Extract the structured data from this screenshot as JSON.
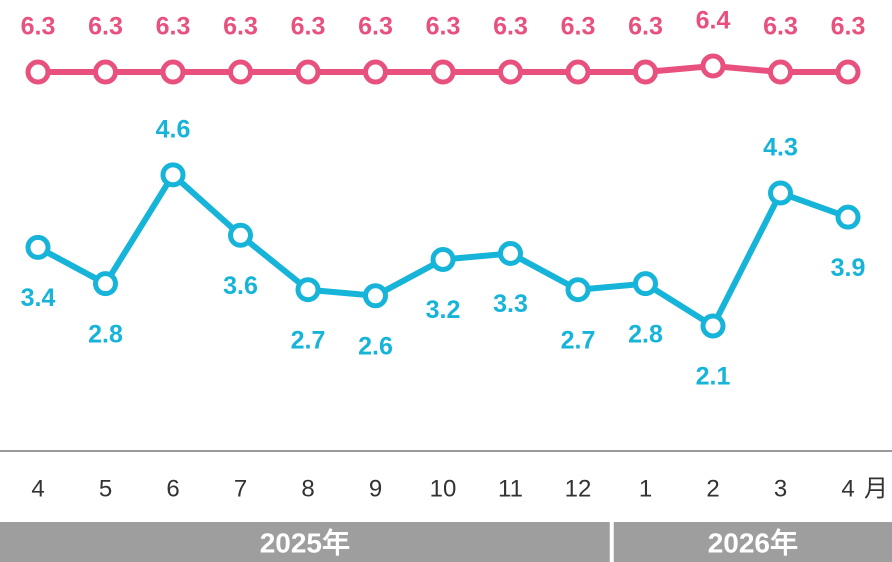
{
  "chart_data": {
    "type": "line",
    "categories": [
      "4",
      "5",
      "6",
      "7",
      "8",
      "9",
      "10",
      "11",
      "12",
      "1",
      "2",
      "3",
      "4"
    ],
    "x_unit": "月",
    "year_groups": [
      {
        "label": "2025年",
        "span": 9
      },
      {
        "label": "2026年",
        "span": 4
      }
    ],
    "series": [
      {
        "color": "#e8517e",
        "values": [
          6.3,
          6.3,
          6.3,
          6.3,
          6.3,
          6.3,
          6.3,
          6.3,
          6.3,
          6.3,
          6.4,
          6.3,
          6.3
        ],
        "label_position": [
          "above",
          "above",
          "above",
          "above",
          "above",
          "above",
          "above",
          "above",
          "above",
          "above",
          "above",
          "above",
          "above"
        ]
      },
      {
        "color": "#16b4d8",
        "values": [
          3.4,
          2.8,
          4.6,
          3.6,
          2.7,
          2.6,
          3.2,
          3.3,
          2.7,
          2.8,
          2.1,
          4.3,
          3.9
        ],
        "label_position": [
          "below",
          "below",
          "above",
          "below",
          "below",
          "below",
          "below",
          "below",
          "below",
          "below",
          "below",
          "above",
          "below"
        ]
      }
    ]
  }
}
